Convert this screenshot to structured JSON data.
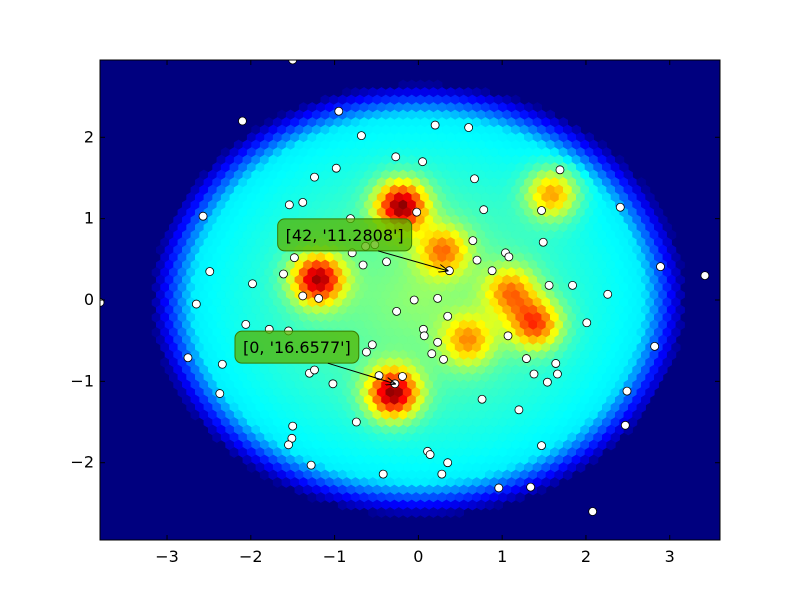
{
  "chart_data": {
    "type": "scatter",
    "title": "",
    "xlabel": "",
    "ylabel": "",
    "xlim": [
      -3.8,
      3.6
    ],
    "ylim": [
      -2.95,
      2.95
    ],
    "grid": false,
    "x_ticks": [
      -3,
      -2,
      -1,
      0,
      1,
      2,
      3
    ],
    "y_ticks": [
      -2,
      -1,
      0,
      1,
      2
    ],
    "x_tick_labels": [
      "−3",
      "−2",
      "−1",
      "0",
      "1",
      "2",
      "3"
    ],
    "y_tick_labels": [
      "−2",
      "−1",
      "0",
      "1",
      "2"
    ],
    "background": {
      "kind": "hexbin-density",
      "colormap": "jet",
      "hot_spots": [
        {
          "x": -0.2,
          "y": 1.15,
          "level": 1.0
        },
        {
          "x": -1.2,
          "y": 0.25,
          "level": 0.95
        },
        {
          "x": -0.3,
          "y": -1.15,
          "level": 1.0
        },
        {
          "x": 1.4,
          "y": -0.3,
          "level": 0.7
        },
        {
          "x": 1.1,
          "y": 0.1,
          "level": 0.55
        },
        {
          "x": 1.6,
          "y": 1.3,
          "level": 0.6
        },
        {
          "x": 0.6,
          "y": -0.5,
          "level": 0.5
        },
        {
          "x": 0.3,
          "y": 0.6,
          "level": 0.55
        }
      ]
    },
    "points": [
      {
        "x": -1.5,
        "y": 2.95
      },
      {
        "x": -0.95,
        "y": 2.32
      },
      {
        "x": 0.2,
        "y": 2.15
      },
      {
        "x": 0.6,
        "y": 2.12
      },
      {
        "x": -2.1,
        "y": 2.2
      },
      {
        "x": -0.68,
        "y": 2.02
      },
      {
        "x": -0.27,
        "y": 1.76
      },
      {
        "x": 0.05,
        "y": 1.7
      },
      {
        "x": -0.98,
        "y": 1.62
      },
      {
        "x": -1.24,
        "y": 1.51
      },
      {
        "x": 0.67,
        "y": 1.49
      },
      {
        "x": 1.69,
        "y": 1.6
      },
      {
        "x": -1.38,
        "y": 1.2
      },
      {
        "x": -1.54,
        "y": 1.17
      },
      {
        "x": 2.41,
        "y": 1.14
      },
      {
        "x": 0.78,
        "y": 1.11
      },
      {
        "x": 1.47,
        "y": 1.1
      },
      {
        "x": -2.57,
        "y": 1.03
      },
      {
        "x": -0.02,
        "y": 1.08
      },
      {
        "x": -0.81,
        "y": 1.0
      },
      {
        "x": 0.65,
        "y": 0.73
      },
      {
        "x": 1.49,
        "y": 0.71
      },
      {
        "x": 1.04,
        "y": 0.58
      },
      {
        "x": 1.08,
        "y": 0.53
      },
      {
        "x": -0.79,
        "y": 0.58
      },
      {
        "x": -0.63,
        "y": 0.66
      },
      {
        "x": -0.52,
        "y": 0.68
      },
      {
        "x": -0.38,
        "y": 0.47
      },
      {
        "x": -0.66,
        "y": 0.43
      },
      {
        "x": -1.48,
        "y": 0.52
      },
      {
        "x": 0.7,
        "y": 0.49
      },
      {
        "x": 0.88,
        "y": 0.36
      },
      {
        "x": 0.37,
        "y": 0.36
      },
      {
        "x": -2.49,
        "y": 0.35
      },
      {
        "x": -1.61,
        "y": 0.32
      },
      {
        "x": 2.89,
        "y": 0.41
      },
      {
        "x": 3.42,
        "y": 0.3
      },
      {
        "x": -1.98,
        "y": 0.2
      },
      {
        "x": 1.56,
        "y": 0.18
      },
      {
        "x": 1.84,
        "y": 0.18
      },
      {
        "x": -1.38,
        "y": 0.05
      },
      {
        "x": -1.19,
        "y": 0.02
      },
      {
        "x": 0.23,
        "y": 0.02
      },
      {
        "x": 2.26,
        "y": 0.07
      },
      {
        "x": -2.65,
        "y": -0.05
      },
      {
        "x": -0.05,
        "y": 0.0
      },
      {
        "x": -3.8,
        "y": -0.03
      },
      {
        "x": -0.26,
        "y": -0.14
      },
      {
        "x": 0.35,
        "y": -0.2
      },
      {
        "x": -2.06,
        "y": -0.3
      },
      {
        "x": 2.01,
        "y": -0.28
      },
      {
        "x": -1.78,
        "y": -0.36
      },
      {
        "x": -1.55,
        "y": -0.38
      },
      {
        "x": 0.06,
        "y": -0.36
      },
      {
        "x": 0.07,
        "y": -0.44
      },
      {
        "x": 1.07,
        "y": -0.44
      },
      {
        "x": 0.23,
        "y": -0.52
      },
      {
        "x": 2.82,
        "y": -0.57
      },
      {
        "x": -2.75,
        "y": -0.71
      },
      {
        "x": -0.62,
        "y": -0.64
      },
      {
        "x": -0.55,
        "y": -0.55
      },
      {
        "x": 0.16,
        "y": -0.66
      },
      {
        "x": 0.3,
        "y": -0.73
      },
      {
        "x": 1.29,
        "y": -0.72
      },
      {
        "x": -2.34,
        "y": -0.79
      },
      {
        "x": 1.64,
        "y": -0.78
      },
      {
        "x": -1.3,
        "y": -0.9
      },
      {
        "x": -1.24,
        "y": -0.86
      },
      {
        "x": 1.38,
        "y": -0.91
      },
      {
        "x": 1.66,
        "y": -0.91
      },
      {
        "x": -0.47,
        "y": -0.93
      },
      {
        "x": -0.19,
        "y": -0.94
      },
      {
        "x": 1.54,
        "y": -1.01
      },
      {
        "x": -1.02,
        "y": -1.03
      },
      {
        "x": -0.28,
        "y": -1.03
      },
      {
        "x": -2.37,
        "y": -1.15
      },
      {
        "x": 2.49,
        "y": -1.12
      },
      {
        "x": 0.76,
        "y": -1.22
      },
      {
        "x": 1.2,
        "y": -1.35
      },
      {
        "x": -0.74,
        "y": -1.5
      },
      {
        "x": -1.5,
        "y": -1.55
      },
      {
        "x": 2.47,
        "y": -1.54
      },
      {
        "x": -1.51,
        "y": -1.7
      },
      {
        "x": -1.55,
        "y": -1.78
      },
      {
        "x": 1.47,
        "y": -1.79
      },
      {
        "x": 0.11,
        "y": -1.86
      },
      {
        "x": 0.14,
        "y": -1.9
      },
      {
        "x": 0.35,
        "y": -2.0
      },
      {
        "x": -1.28,
        "y": -2.03
      },
      {
        "x": -0.42,
        "y": -2.14
      },
      {
        "x": 0.28,
        "y": -2.14
      },
      {
        "x": 0.96,
        "y": -2.31
      },
      {
        "x": 1.34,
        "y": -2.3
      },
      {
        "x": 2.08,
        "y": -2.6
      }
    ],
    "annotations": [
      {
        "text": "[42, '11.2808']",
        "box_x": -0.88,
        "box_y": 0.8,
        "target_x": 0.35,
        "target_y": 0.36
      },
      {
        "text": "[0, '16.6577']",
        "box_x": -1.45,
        "box_y": -0.58,
        "target_x": -0.28,
        "target_y": -1.03
      }
    ],
    "colors": {
      "axes_background": "#00007f",
      "point_fill": "#ffffff",
      "point_edge": "#000000",
      "annotation_fill": "#55b500",
      "annotation_edge": "#3a7a00"
    }
  }
}
